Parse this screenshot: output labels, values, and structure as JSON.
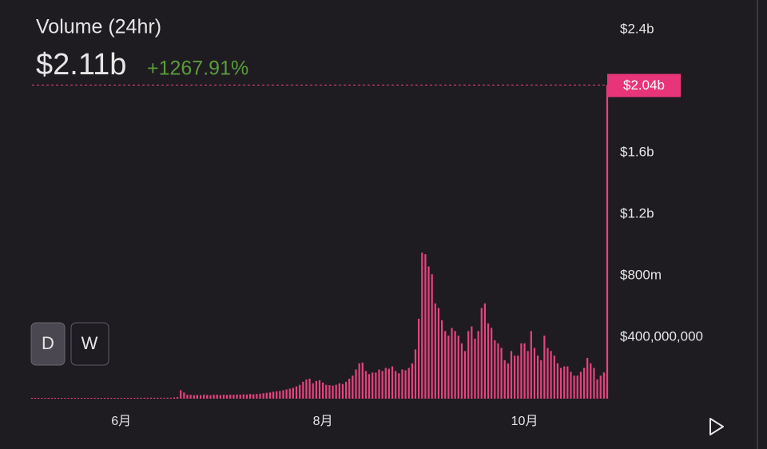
{
  "chart_data": {
    "type": "bar",
    "title": "Volume (24hr)",
    "headline": "$2.11b",
    "change": "+1267.91%",
    "marker": {
      "value": 2040000000,
      "label": "$2.04b"
    },
    "controls": [
      "D",
      "W"
    ],
    "color": "#e8437e",
    "categories": [
      null,
      null,
      null,
      null,
      null,
      null,
      null,
      null,
      null,
      null,
      null,
      null,
      null,
      null,
      null,
      null,
      null,
      null,
      null,
      null,
      null,
      null,
      null,
      null,
      null,
      null,
      null,
      "6月",
      null,
      null,
      null,
      null,
      null,
      null,
      null,
      null,
      null,
      null,
      null,
      null,
      null,
      null,
      null,
      null,
      null,
      null,
      null,
      null,
      null,
      null,
      null,
      null,
      null,
      null,
      null,
      null,
      null,
      null,
      null,
      null,
      null,
      null,
      null,
      null,
      null,
      null,
      null,
      null,
      null,
      null,
      null,
      null,
      null,
      null,
      null,
      null,
      null,
      null,
      null,
      null,
      null,
      null,
      null,
      null,
      null,
      null,
      null,
      null,
      "8月",
      null,
      null,
      null,
      null,
      null,
      null,
      null,
      null,
      null,
      null,
      null,
      null,
      null,
      null,
      null,
      null,
      null,
      null,
      null,
      null,
      null,
      null,
      null,
      null,
      null,
      null,
      null,
      null,
      null,
      null,
      null,
      null,
      null,
      null,
      null,
      null,
      null,
      null,
      null,
      null,
      null,
      null,
      null,
      null,
      null,
      null,
      null,
      null,
      null,
      null,
      null,
      null,
      null,
      null,
      null,
      null,
      null,
      null,
      null,
      null,
      "10月",
      null,
      null,
      null,
      null,
      null,
      null,
      null,
      null,
      null,
      null,
      null,
      null,
      null,
      null,
      null,
      null,
      null,
      null,
      null,
      null,
      null,
      null,
      null,
      null,
      null
    ],
    "values": [
      5000000.0,
      5000000.0,
      5000000.0,
      5000000.0,
      5000000.0,
      5000000.0,
      5000000.0,
      5000000.0,
      5000000.0,
      5000000.0,
      5000000.0,
      5000000.0,
      5000000.0,
      5000000.0,
      5000000.0,
      5000000.0,
      5000000.0,
      5000000.0,
      5000000.0,
      5000000.0,
      5000000.0,
      5000000.0,
      5000000.0,
      5000000.0,
      5000000.0,
      5000000.0,
      5000000.0,
      5000000.0,
      5000000.0,
      5000000.0,
      5000000.0,
      5000000.0,
      6000000.0,
      6000000.0,
      6000000.0,
      6000000.0,
      6000000.0,
      6000000.0,
      6000000.0,
      6000000.0,
      6000000.0,
      6000000.0,
      6000000.0,
      8000000.0,
      10000000.0,
      55000000.0,
      40000000.0,
      25000000.0,
      25000000.0,
      22000000.0,
      24000000.0,
      23000000.0,
      25000000.0,
      24000000.0,
      22000000.0,
      25000000.0,
      26000000.0,
      23000000.0,
      25000000.0,
      24000000.0,
      26000000.0,
      25000000.0,
      27000000.0,
      26000000.0,
      28000000.0,
      27000000.0,
      30000000.0,
      28000000.0,
      30000000.0,
      32000000.0,
      35000000.0,
      38000000.0,
      40000000.0,
      45000000.0,
      48000000.0,
      50000000.0,
      55000000.0,
      60000000.0,
      65000000.0,
      70000000.0,
      80000000.0,
      90000000.0,
      110000000.0,
      125000000.0,
      130000000.0,
      100000000.0,
      115000000.0,
      120000000.0,
      105000000.0,
      90000000.0,
      88000000.0,
      85000000.0,
      90000000.0,
      100000000.0,
      95000000.0,
      110000000.0,
      130000000.0,
      150000000.0,
      190000000.0,
      230000000.0,
      235000000.0,
      180000000.0,
      160000000.0,
      170000000.0,
      170000000.0,
      190000000.0,
      180000000.0,
      200000000.0,
      195000000.0,
      210000000.0,
      180000000.0,
      165000000.0,
      190000000.0,
      185000000.0,
      200000000.0,
      230000000.0,
      320000000.0,
      520000000.0,
      950000000.0,
      940000000.0,
      860000000.0,
      810000000.0,
      620000000.0,
      590000000.0,
      510000000.0,
      440000000.0,
      410000000.0,
      460000000.0,
      440000000.0,
      410000000.0,
      360000000.0,
      310000000.0,
      440000000.0,
      470000000.0,
      390000000.0,
      440000000.0,
      590000000.0,
      620000000.0,
      490000000.0,
      460000000.0,
      380000000.0,
      360000000.0,
      330000000.0,
      250000000.0,
      230000000.0,
      310000000.0,
      280000000.0,
      280000000.0,
      360000000.0,
      360000000.0,
      310000000.0,
      440000000.0,
      330000000.0,
      280000000.0,
      250000000.0,
      410000000.0,
      330000000.0,
      310000000.0,
      280000000.0,
      230000000.0,
      200000000.0,
      210000000.0,
      210000000.0,
      175000000.0,
      150000000.0,
      150000000.0,
      175000000.0,
      200000000.0,
      265000000.0,
      230000000.0,
      200000000.0,
      125000000.0,
      150000000.0,
      170000000.0,
      2040000000.0
    ],
    "ylim": [
      0,
      2500000000
    ],
    "yticks": [
      {
        "value": 400000000,
        "label": "$400,000,000"
      },
      {
        "value": 800000000,
        "label": "$800m"
      },
      {
        "value": 1200000000,
        "label": "$1.2b"
      },
      {
        "value": 1600000000,
        "label": "$1.6b"
      },
      {
        "value": 2400000000,
        "label": "$2.4b"
      }
    ],
    "grid": false
  }
}
